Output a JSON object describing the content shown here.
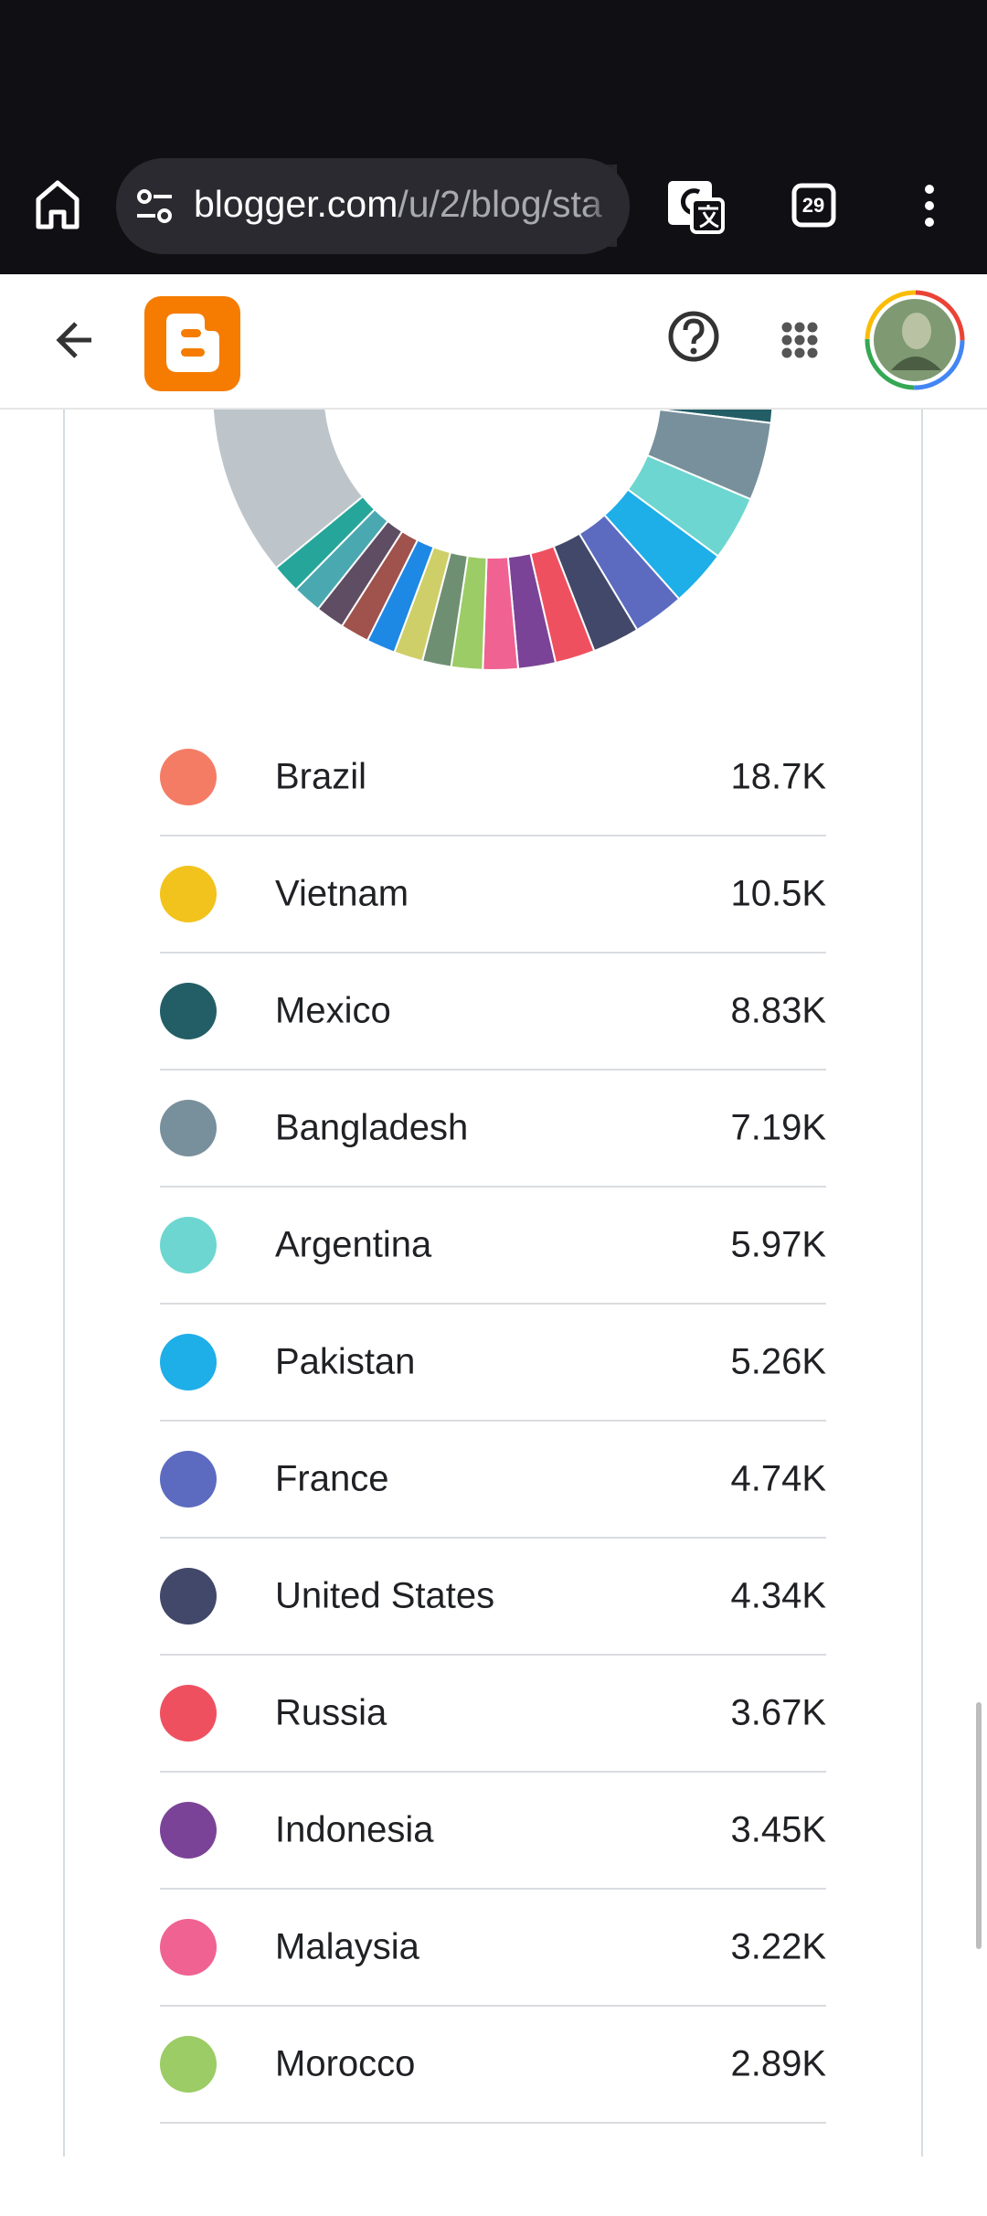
{
  "browser": {
    "url_host": "blogger.com",
    "url_path": "/u/2/blog/sta",
    "tab_count": 29
  },
  "chart_data": {
    "type": "donut",
    "categories": [
      "Brazil",
      "Vietnam",
      "Mexico",
      "Bangladesh",
      "Argentina",
      "Pakistan",
      "France",
      "United States",
      "Russia",
      "Indonesia",
      "Malaysia",
      "Morocco"
    ],
    "values": [
      18700,
      10500,
      8830,
      7190,
      5970,
      5260,
      4740,
      4340,
      3670,
      3450,
      3220,
      2890
    ],
    "value_labels": [
      "18.7K",
      "10.5K",
      "8.83K",
      "7.19K",
      "5.97K",
      "5.26K",
      "4.74K",
      "4.34K",
      "3.67K",
      "3.45K",
      "3.22K",
      "2.89K"
    ],
    "colors": [
      "#f47c65",
      "#f2c31c",
      "#235e66",
      "#78909c",
      "#6dd6d0",
      "#1eaee8",
      "#5c6bc0",
      "#424869",
      "#ef5060",
      "#7b4397",
      "#f06292",
      "#9ccc65"
    ]
  }
}
